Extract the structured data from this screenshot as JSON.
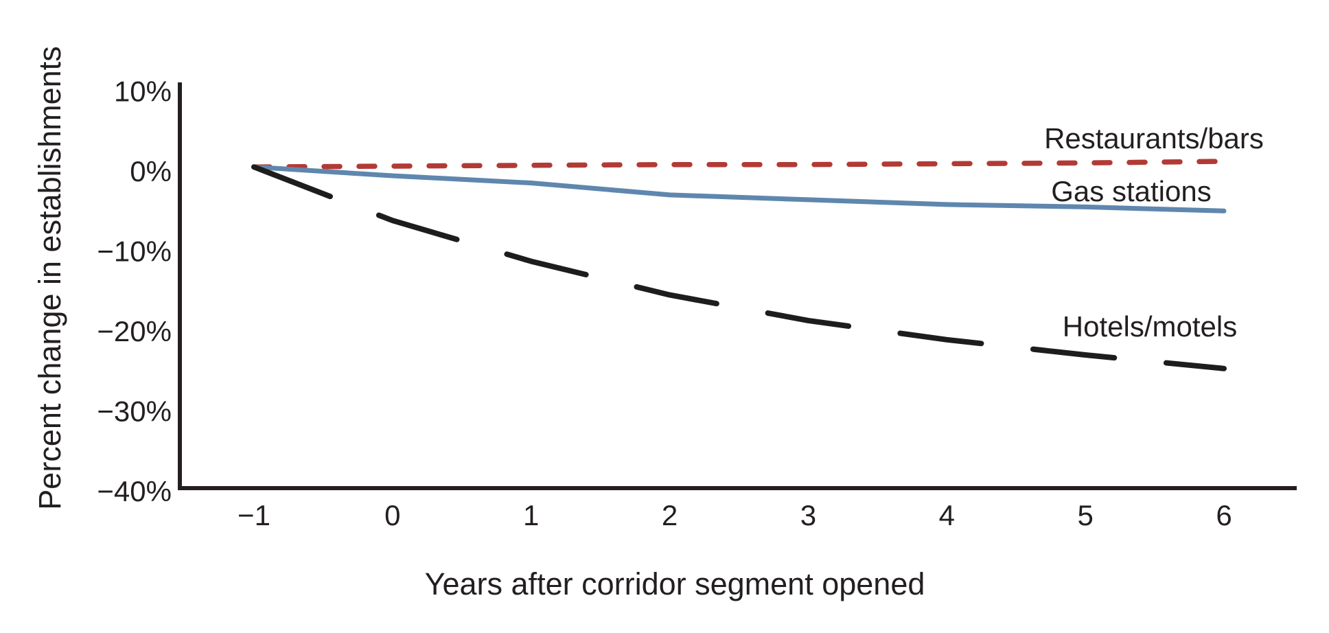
{
  "figure": {
    "background_color": "#ffffff",
    "text_color": "#231f20"
  },
  "chart_data": {
    "type": "line",
    "title": "",
    "xlabel": "Years after corridor segment opened",
    "ylabel": "Percent change in establishments",
    "x": [
      -1,
      0,
      1,
      2,
      3,
      4,
      5,
      6
    ],
    "x_tick_labels": [
      "−1",
      "0",
      "1",
      "2",
      "3",
      "4",
      "5",
      "6"
    ],
    "y_tick_values": [
      10,
      0,
      -10,
      -20,
      -30,
      -40
    ],
    "y_tick_labels": [
      "10%",
      "0%",
      "−10%",
      "−20%",
      "−30%",
      "−40%"
    ],
    "xlim": [
      -1.55,
      6.5
    ],
    "ylim": [
      -40,
      10.8
    ],
    "grid": false,
    "legend_position": "inline-right-of-lines",
    "series": [
      {
        "id": "restaurants-bars",
        "name": "Restaurants/bars",
        "color": "#b23a35",
        "style": "dashed",
        "values": [
          0.5,
          0.6,
          0.7,
          0.8,
          0.8,
          0.9,
          1.0,
          1.2
        ]
      },
      {
        "id": "gas-stations",
        "name": "Gas stations",
        "color": "#5f87ae",
        "style": "solid",
        "values": [
          0.5,
          -0.6,
          -1.5,
          -3.0,
          -3.6,
          -4.2,
          -4.5,
          -5.0
        ]
      },
      {
        "id": "hotels-motels",
        "name": "Hotels/motels",
        "color": "#1f1d1c",
        "style": "long-dash",
        "values": [
          0.5,
          -6.2,
          -11.3,
          -15.5,
          -18.7,
          -21.1,
          -23.0,
          -24.7
        ]
      }
    ]
  }
}
